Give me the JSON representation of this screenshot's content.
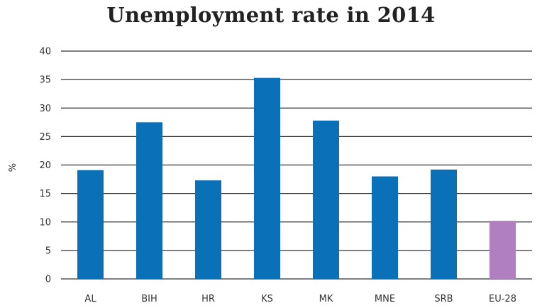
{
  "chart_data": {
    "type": "bar",
    "title": "Unemployment rate in 2014",
    "xlabel": "",
    "ylabel": "%",
    "ylim": [
      0,
      40
    ],
    "yticks": [
      0,
      5,
      10,
      15,
      20,
      25,
      30,
      35,
      40
    ],
    "grid": true,
    "legend": "none",
    "categories": [
      "AL",
      "BIH",
      "HR",
      "KS",
      "MK",
      "MNE",
      "SRB",
      "EU-28"
    ],
    "values": [
      19.1,
      27.5,
      17.3,
      35.3,
      27.8,
      18.0,
      19.2,
      10.2
    ],
    "colors": [
      "#0a70b8",
      "#0a70b8",
      "#0a70b8",
      "#0a70b8",
      "#0a70b8",
      "#0a70b8",
      "#0a70b8",
      "#b07fc0"
    ],
    "gridline_color": "#333333"
  }
}
